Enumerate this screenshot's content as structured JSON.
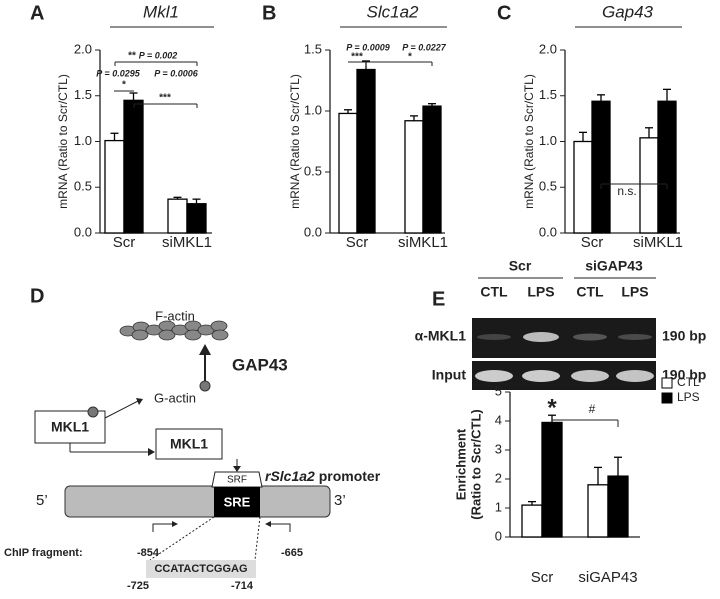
{
  "chart_data": [
    {
      "type": "bar",
      "panel": "A",
      "title": "Mkl1",
      "ylabel": "mRNA (Ratio to Scr/CTL)",
      "categories": [
        "Scr",
        "siMKL1"
      ],
      "series": [
        {
          "color": "#ffffff",
          "values": [
            1.01,
            0.37
          ],
          "errors": [
            0.08,
            0.02
          ]
        },
        {
          "color": "#000000",
          "values": [
            1.45,
            0.32
          ],
          "errors": [
            0.08,
            0.05
          ]
        }
      ],
      "ylim": [
        0,
        2
      ],
      "yticks": [
        {
          "value": 0,
          "label": "0.0"
        },
        0.5,
        {
          "value": 1,
          "label": "1.0"
        },
        1.5,
        {
          "value": 2,
          "label": "2.0"
        }
      ],
      "annotations": [
        "**",
        "P = 0.002",
        "P = 0.0295",
        "P = 0.0006",
        "*",
        "***"
      ]
    },
    {
      "type": "bar",
      "panel": "B",
      "title": "Slc1a2",
      "ylabel": "mRNA (Ratio to Scr/CTL)",
      "categories": [
        "Scr",
        "siMKL1"
      ],
      "series": [
        {
          "color": "#ffffff",
          "values": [
            0.98,
            0.92
          ],
          "errors": [
            0.03,
            0.04
          ]
        },
        {
          "color": "#000000",
          "values": [
            1.34,
            1.04
          ],
          "errors": [
            0.07,
            0.02
          ]
        }
      ],
      "ylim": [
        0,
        1.5
      ],
      "yticks": [
        {
          "value": 0,
          "label": "0.0"
        },
        0.5,
        {
          "value": 1,
          "label": "1.0"
        },
        1.5
      ],
      "annotations": [
        "P = 0.0009",
        "P = 0.0227",
        "***",
        "*"
      ]
    },
    {
      "type": "bar",
      "panel": "C",
      "title": "Gap43",
      "ylabel": "mRNA (Ratio to Scr/CTL)",
      "categories": [
        "Scr",
        "siMKL1"
      ],
      "series": [
        {
          "color": "#ffffff",
          "values": [
            1.0,
            1.04
          ],
          "errors": [
            0.1,
            0.11
          ]
        },
        {
          "color": "#000000",
          "values": [
            1.44,
            1.44
          ],
          "errors": [
            0.07,
            0.13
          ]
        }
      ],
      "ylim": [
        0,
        2
      ],
      "yticks": [
        {
          "value": 0,
          "label": "0.0"
        },
        0.5,
        {
          "value": 1,
          "label": "1.0"
        },
        1.5,
        {
          "value": 2,
          "label": "2.0"
        }
      ],
      "annotations": [
        "n.s."
      ]
    },
    {
      "type": "bar",
      "panel": "E",
      "ylabel": [
        "Enrichment",
        "(Ratio to Scr/CTL)"
      ],
      "categories": [
        "Scr",
        "siGAP43"
      ],
      "series": [
        {
          "name": "CTL",
          "color": "#ffffff",
          "values": [
            1.1,
            1.8
          ],
          "errors": [
            0.12,
            0.6
          ]
        },
        {
          "name": "LPS",
          "color": "#000000",
          "values": [
            3.95,
            2.1
          ],
          "errors": [
            0.25,
            0.65
          ]
        }
      ],
      "ylim": [
        0,
        5
      ],
      "yticks": [
        0,
        1,
        2,
        3,
        4,
        5
      ],
      "legend": "upper right",
      "annotations": [
        "*",
        "#"
      ]
    }
  ],
  "gel": {
    "groups": [
      "Scr",
      "siGAP43"
    ],
    "lanes": [
      "CTL",
      "LPS",
      "CTL",
      "LPS"
    ],
    "rows": [
      {
        "label": "α-MKL1",
        "size": "190 bp"
      },
      {
        "label": "Input",
        "size": "190 bp"
      }
    ]
  },
  "diagram": {
    "label": "D",
    "f_actin": "F-actin",
    "gap43": "GAP43",
    "g_actin": "G-actin",
    "mkl1_cytoplasm": "MKL1",
    "mkl1_nucleus": "MKL1",
    "srf": "SRF",
    "sre": "SRE",
    "promoter_gene": "rSlc1a2",
    "promoter_word": "promoter",
    "five_prime": "5’",
    "three_prime": "3’",
    "chip_fragment": "ChIP fragment:",
    "chip_start": "-854",
    "chip_end": "-665",
    "sequence": "CCATACTCGGAG",
    "seq_start": "-725",
    "seq_end": "-714"
  }
}
